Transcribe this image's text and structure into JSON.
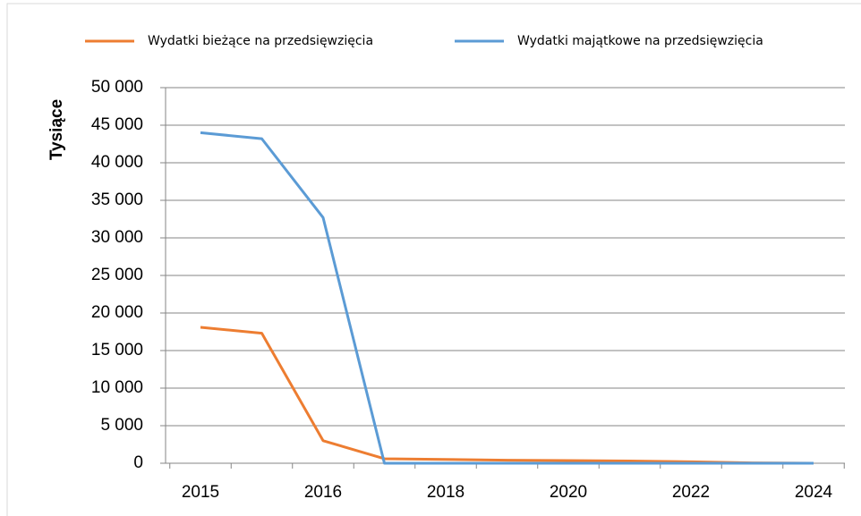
{
  "chart_data": {
    "type": "line",
    "y_label": "Tysiące",
    "categories": [
      "2015",
      null,
      "2016",
      null,
      "2018",
      null,
      "2020",
      null,
      "2022",
      null,
      "2024"
    ],
    "series": [
      {
        "name": "Wydatki bieżące na przedsięwzięcia",
        "color": "#ed7d31",
        "values": [
          18100,
          17300,
          3000,
          600,
          500,
          400,
          350,
          300,
          200,
          50,
          0
        ]
      },
      {
        "name": "Wydatki majątkowe na przedsięwzięcia",
        "color": "#5b9bd5",
        "values": [
          44000,
          43200,
          32700,
          0,
          0,
          0,
          0,
          0,
          0,
          0,
          0
        ]
      }
    ],
    "ylim": [
      0,
      50000
    ],
    "yticks": [
      0,
      {
        "value": 5000,
        "label": "5 000"
      },
      {
        "value": 10000,
        "label": "10 000"
      },
      {
        "value": 15000,
        "label": "15 000"
      },
      {
        "value": 20000,
        "label": "20 000"
      },
      {
        "value": 25000,
        "label": "25 000"
      },
      {
        "value": 30000,
        "label": "30 000"
      },
      {
        "value": 35000,
        "label": "35 000"
      },
      {
        "value": 40000,
        "label": "40 000"
      },
      {
        "value": 45000,
        "label": "45 000"
      },
      {
        "value": 50000,
        "label": "50 000"
      }
    ],
    "grid": true,
    "legend": "top"
  }
}
